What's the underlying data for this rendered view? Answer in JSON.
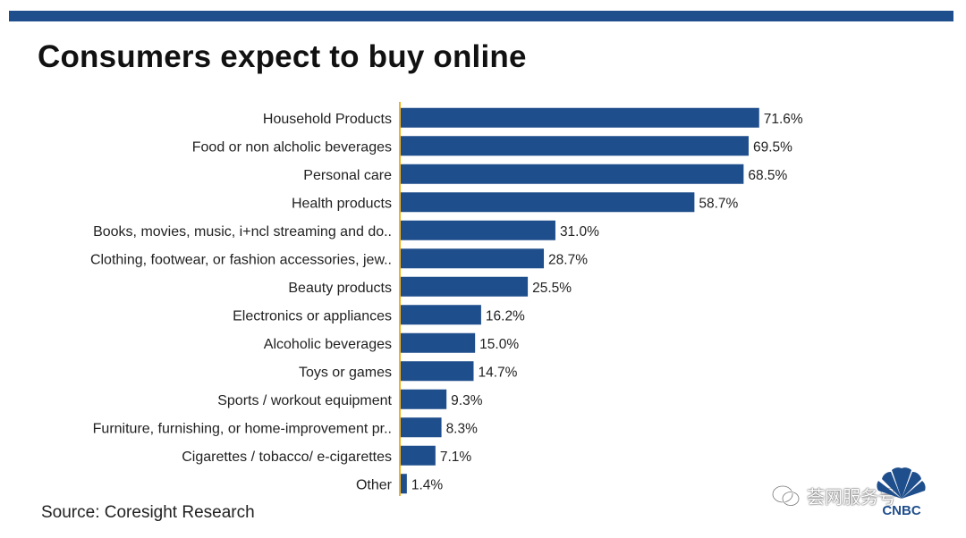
{
  "title": "Consumers expect to buy online",
  "source": "Source: Coresight Research",
  "watermark": "荟网服务号",
  "logo_text": "CNBC",
  "colors": {
    "bar": "#1f4e8c",
    "axis": "#f0b323",
    "top_bar": "#1f4e8c"
  },
  "chart_data": {
    "type": "bar",
    "orientation": "horizontal",
    "categories": [
      "Household Products",
      "Food or non alcholic beverages",
      "Personal care",
      "Health products",
      "Books, movies, music, i+ncl streaming and do..",
      "Clothing, footwear, or fashion accessories, jew..",
      "Beauty products",
      "Electronics or appliances",
      "Alcoholic beverages",
      "Toys or games",
      "Sports / workout equipment",
      "Furniture, furnishing, or home-improvement pr..",
      "Cigarettes / tobacco/ e-cigarettes",
      "Other"
    ],
    "values": [
      71.6,
      69.5,
      68.5,
      58.7,
      31.0,
      28.7,
      25.5,
      16.2,
      15.0,
      14.7,
      9.3,
      8.3,
      7.1,
      1.4
    ],
    "value_labels": [
      "71.6%",
      "69.5%",
      "68.5%",
      "58.7%",
      "31.0%",
      "28.7%",
      "25.5%",
      "16.2%",
      "15.0%",
      "14.7%",
      "9.3%",
      "8.3%",
      "7.1%",
      "1.4%"
    ],
    "xlim": [
      0,
      72
    ],
    "grid": false,
    "legend": "none"
  }
}
